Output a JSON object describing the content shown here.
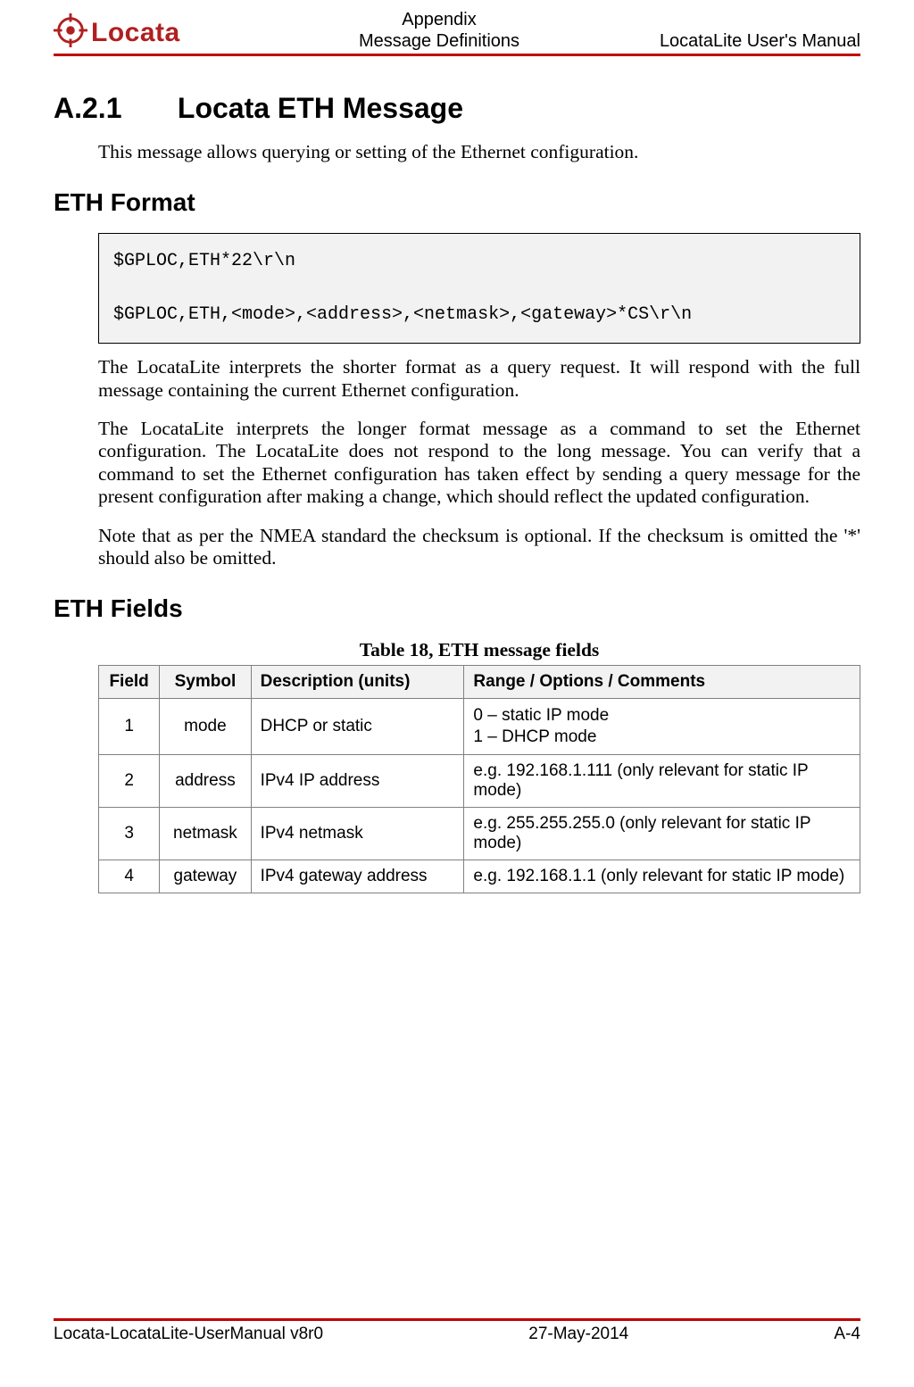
{
  "colors": {
    "rule": "#c00000",
    "logo": "#b02020",
    "tableHeaderBg": "#f2f2f2",
    "tableBorder": "#808080",
    "codeBg": "#f2f2f2"
  },
  "header": {
    "logoText": "Locata",
    "centerLine1": "Appendix",
    "centerLine2": "Message Definitions",
    "right": "LocataLite User's Manual"
  },
  "section": {
    "number": "A.2.1",
    "title": "Locata ETH Message",
    "intro": "This message allows querying or setting of the Ethernet configuration."
  },
  "ethFormat": {
    "heading": "ETH Format",
    "codeLine1": "$GPLOC,ETH*22\\r\\n",
    "codeLine2": "$GPLOC,ETH,<mode>,<address>,<netmask>,<gateway>*CS\\r\\n",
    "para1": "The LocataLite interprets the shorter format as a query request.  It will respond with the full message containing the current Ethernet configuration.",
    "para2": "The LocataLite interprets the longer format message as a command to set the Ethernet configuration.  The LocataLite does not respond to the long message.  You can verify that a command to set the Ethernet configuration has taken effect by sending a query message for the present configuration after making a change, which should reflect the updated configuration.",
    "para3": "Note that as per the NMEA standard the checksum is optional. If the checksum is omitted the '*' should also be omitted."
  },
  "ethFields": {
    "heading": "ETH Fields",
    "caption": "Table 18, ETH message fields",
    "columns": [
      "Field",
      "Symbol",
      "Description (units)",
      "Range / Options / Comments"
    ],
    "columnWidths": [
      "8%",
      "12%",
      "28%",
      "52%"
    ],
    "rows": [
      [
        "1",
        "mode",
        "DHCP or static",
        "0 – static IP mode\n1 – DHCP mode"
      ],
      [
        "2",
        "address",
        "IPv4 IP address",
        "e.g. 192.168.1.111 (only relevant for static IP mode)"
      ],
      [
        "3",
        "netmask",
        "IPv4 netmask",
        "e.g. 255.255.255.0 (only relevant for static IP mode)"
      ],
      [
        "4",
        "gateway",
        "IPv4 gateway address",
        "e.g. 192.168.1.1 (only relevant for static IP mode)"
      ]
    ]
  },
  "footer": {
    "left": "Locata-LocataLite-UserManual v8r0",
    "center": "27-May-2014",
    "right": "A-4"
  }
}
